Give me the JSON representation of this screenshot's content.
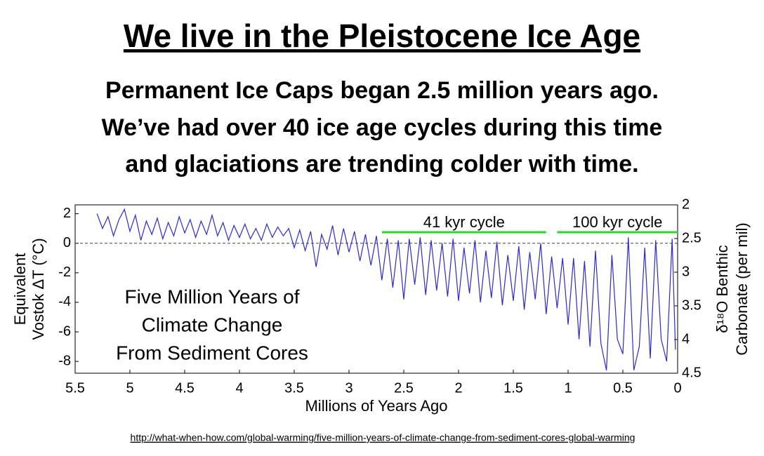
{
  "title": "We live in the Pleistocene Ice Age",
  "subtitle": [
    "Permanent Ice Caps began 2.5 million years ago.",
    "We’ve had over 40 ice age cycles during this time",
    "and glaciations are trending colder with time."
  ],
  "source": "http://what-when-how.com/global-warming/five-million-years-of-climate-change-from-sediment-cores-global-warming",
  "chart_data": {
    "type": "line",
    "xlabel": "Millions of Years Ago",
    "ylabel": [
      "Equivalent",
      "Vostok ΔT (°C)"
    ],
    "y2label": [
      "δ¹⁸O Benthic",
      "Carbonate (per mil)"
    ],
    "inset_text": [
      "Five Million Years of",
      "Climate Change",
      "From Sediment Cores"
    ],
    "annotations": [
      {
        "text": "41 kyr cycle",
        "x": [
          2.7,
          1.2
        ],
        "y": 0.75,
        "color": "#22dd22"
      },
      {
        "text": "100 kyr cycle",
        "x": [
          1.1,
          0
        ],
        "y": 0.75,
        "color": "#22dd22"
      }
    ],
    "hline": 0,
    "xlim": [
      5.5,
      0
    ],
    "xticks": [
      5.5,
      5,
      4.5,
      4,
      3.5,
      3,
      2.5,
      2,
      1.5,
      1,
      0.5,
      0
    ],
    "ylim": [
      -8.8,
      2.6
    ],
    "yticks": [
      -8,
      -6,
      -4,
      -2,
      0,
      2
    ],
    "y2lim": [
      4.5,
      2
    ],
    "y2ticks": [
      2,
      2.5,
      3,
      3.5,
      4,
      4.5
    ],
    "x": [
      5.3,
      5.25,
      5.2,
      5.15,
      5.1,
      5.05,
      5,
      4.95,
      4.9,
      4.85,
      4.8,
      4.75,
      4.7,
      4.65,
      4.6,
      4.55,
      4.5,
      4.45,
      4.4,
      4.35,
      4.3,
      4.25,
      4.2,
      4.15,
      4.1,
      4.05,
      4,
      3.95,
      3.9,
      3.85,
      3.8,
      3.75,
      3.7,
      3.65,
      3.6,
      3.55,
      3.5,
      3.45,
      3.4,
      3.35,
      3.3,
      3.25,
      3.2,
      3.15,
      3.1,
      3.05,
      3,
      2.95,
      2.9,
      2.85,
      2.8,
      2.75,
      2.7,
      2.65,
      2.6,
      2.55,
      2.5,
      2.45,
      2.4,
      2.35,
      2.3,
      2.25,
      2.2,
      2.15,
      2.1,
      2.05,
      2,
      1.95,
      1.9,
      1.85,
      1.8,
      1.75,
      1.7,
      1.65,
      1.6,
      1.55,
      1.5,
      1.45,
      1.4,
      1.35,
      1.3,
      1.25,
      1.2,
      1.15,
      1.1,
      1.05,
      1,
      0.95,
      0.9,
      0.85,
      0.8,
      0.75,
      0.7,
      0.65,
      0.6,
      0.55,
      0.5,
      0.45,
      0.4,
      0.35,
      0.3,
      0.25,
      0.2,
      0.15,
      0.1,
      0.05,
      0.02
    ],
    "series": [
      {
        "name": "Temperature",
        "color": "#2a2ad0",
        "values": [
          2.0,
          1.0,
          1.8,
          0.5,
          1.6,
          2.3,
          0.8,
          1.9,
          0.2,
          1.5,
          0.6,
          1.7,
          0.3,
          1.4,
          0.5,
          1.8,
          0.7,
          1.6,
          0.4,
          1.5,
          0.6,
          1.9,
          0.5,
          1.4,
          0.2,
          1.2,
          0.4,
          1.3,
          0.3,
          1.0,
          0.2,
          1.3,
          0.4,
          1.1,
          0.5,
          1.0,
          -0.3,
          0.9,
          -0.5,
          0.8,
          -1.6,
          0.6,
          -0.4,
          1.2,
          -0.8,
          1.0,
          -0.6,
          0.8,
          -1.2,
          0.6,
          -1.5,
          0.5,
          -2.5,
          0.3,
          -3.0,
          0.2,
          -3.8,
          0.3,
          -2.8,
          0.4,
          -3.5,
          0.2,
          -3.2,
          0.0,
          -3.6,
          0.3,
          -3.9,
          -0.3,
          -3.4,
          0.2,
          -4.0,
          -0.5,
          -3.7,
          0.1,
          -4.2,
          -0.8,
          -3.9,
          -0.2,
          -4.5,
          -0.6,
          -3.8,
          0.0,
          -4.8,
          -0.9,
          -4.4,
          -1.0,
          -5.5,
          -1.0,
          -6.5,
          -1.2,
          -7.0,
          -0.5,
          -6.8,
          -8.6,
          -0.8,
          -6.5,
          -7.5,
          0.4,
          -8.6,
          -7.0,
          -0.3,
          -7.8,
          0.2,
          -6.5,
          -8.0,
          0.3,
          -7.2
        ]
      }
    ]
  }
}
